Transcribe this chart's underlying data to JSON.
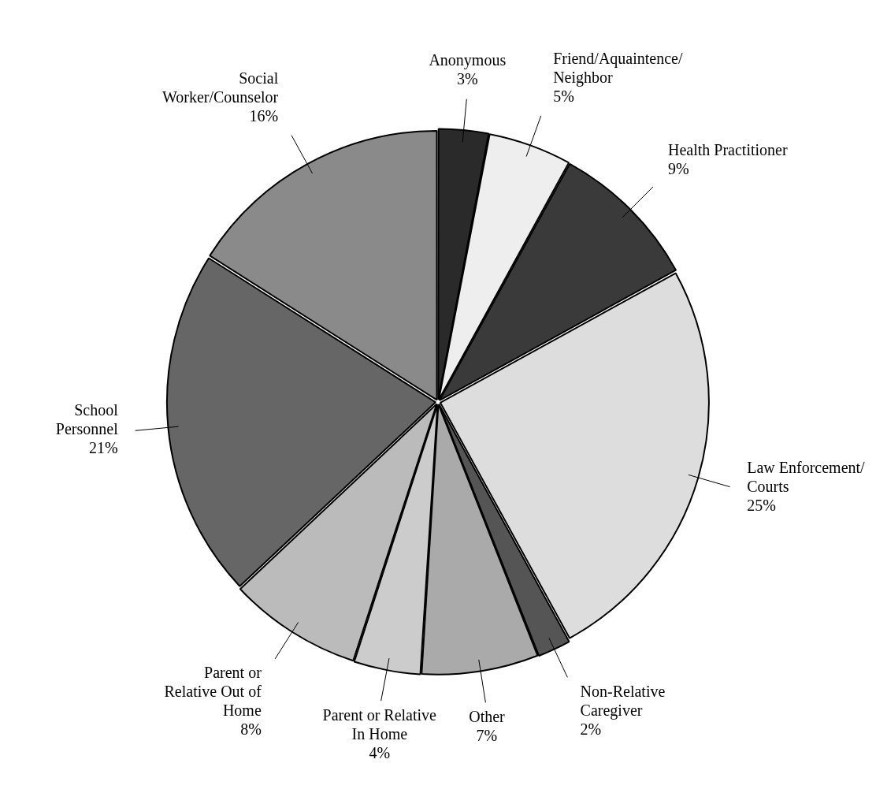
{
  "chart_data": {
    "type": "pie",
    "categories": [
      "Anonymous",
      "Friend/Aquaintence/\nNeighbor",
      "Health Practitioner",
      "Law Enforcement/\nCourts",
      "Non-Relative\nCaregiver",
      "Other",
      "Parent or Relative\nIn Home",
      "Parent or\nRelative Out of\nHome",
      "School\nPersonnel",
      "Social\nWorker/Counselor"
    ],
    "values": [
      3,
      5,
      9,
      25,
      2,
      7,
      4,
      8,
      21,
      16
    ],
    "value_labels": [
      "3%",
      "5%",
      "9%",
      "25%",
      "2%",
      "7%",
      "4%",
      "8%",
      "21%",
      "16%"
    ],
    "colors": [
      "#2a2a2a",
      "#eeeeee",
      "#3a3a3a",
      "#dddddd",
      "#555555",
      "#aaaaaa",
      "#cccccc",
      "#bbbbbb",
      "#666666",
      "#8a8a8a"
    ],
    "legend": false
  }
}
